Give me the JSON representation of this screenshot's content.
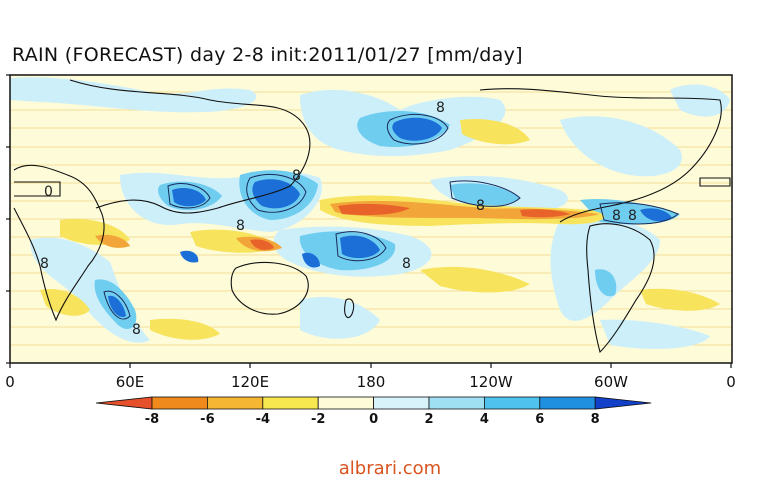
{
  "title": "RAIN (FORECAST) day 2-8 init:2011/01/27 [mm/day]",
  "x_axis": {
    "tick_labels": [
      "0",
      "60E",
      "120E",
      "180",
      "120W",
      "60W",
      "0"
    ]
  },
  "colorbar": {
    "labels": [
      "-8",
      "-6",
      "-4",
      "-2",
      "0",
      "2",
      "4",
      "6",
      "8"
    ],
    "colors": [
      "#e6502a",
      "#f08a1c",
      "#f5b733",
      "#f6e84e",
      "#fdfbd8",
      "#d8f3fa",
      "#9fe0f2",
      "#4fc3ee",
      "#1f8fe0",
      "#1240c8"
    ]
  },
  "contour_labels": [
    "8",
    "8",
    "8",
    "8",
    "8",
    "8",
    "8",
    "8",
    "8",
    "0"
  ],
  "colors": {
    "background_field": "#fdfbd8",
    "positive_light": "#cdeffa",
    "positive_mid": "#6fcdf0",
    "positive_strong": "#1b6fd6",
    "negative_light": "#f7e35c",
    "negative_mid": "#f2a63a",
    "negative_strong": "#e8632a",
    "watermark": "#d9541e"
  },
  "watermark": "albrari.com"
}
